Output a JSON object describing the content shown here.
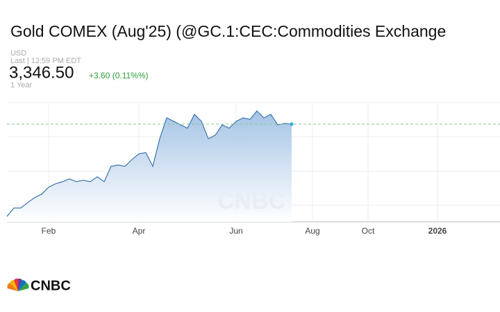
{
  "header": {
    "title": "Gold COMEX (Aug'25) (@GC.1:CEC:Commodities Exchange",
    "currency": "USD",
    "last": "Last | 12:59 PM EDT",
    "price": "3,346.50",
    "change": "+3.60 (0.11%%)",
    "range": "1 Year"
  },
  "chart_data": {
    "type": "area",
    "color": "#3a75b0",
    "fill": "#a9c6e6",
    "ref_color": "#86c98a",
    "ylim": [
      2600,
      3500
    ],
    "categories": [
      null,
      null,
      null,
      null,
      null,
      null,
      "Feb",
      null,
      null,
      null,
      null,
      null,
      null,
      null,
      null,
      null,
      null,
      null,
      null,
      "Apr",
      null,
      null,
      null,
      null,
      null,
      null,
      null,
      null,
      null,
      null,
      null,
      null,
      null,
      "Jun",
      null,
      null,
      null,
      null,
      null,
      null,
      null,
      null,
      null,
      null,
      "Aug",
      null,
      null,
      null,
      null,
      null,
      null,
      null,
      "Oct",
      null,
      null,
      null,
      null,
      null,
      null,
      null,
      null,
      null,
      "2026",
      null,
      null,
      null,
      null,
      null,
      null,
      null,
      null,
      null
    ],
    "values": [
      2642,
      2706,
      2706,
      2748,
      2785,
      2812,
      2865,
      2891,
      2907,
      2928,
      2907,
      2918,
      2907,
      2944,
      2907,
      3024,
      3034,
      3024,
      3076,
      3119,
      3129,
      3024,
      3235,
      3394,
      3368,
      3341,
      3315,
      3421,
      3368,
      3235,
      3262,
      3341,
      3315,
      3368,
      3394,
      3383,
      3447,
      3394,
      3421,
      3341,
      3352,
      3346.5,
      null,
      null,
      null,
      null,
      null,
      null,
      null,
      null,
      null,
      null,
      null,
      null,
      null,
      null,
      null,
      null,
      null,
      null,
      null,
      null,
      null,
      null,
      null,
      null,
      null,
      null,
      null,
      null,
      null,
      null
    ]
  },
  "logo": "CNBC"
}
